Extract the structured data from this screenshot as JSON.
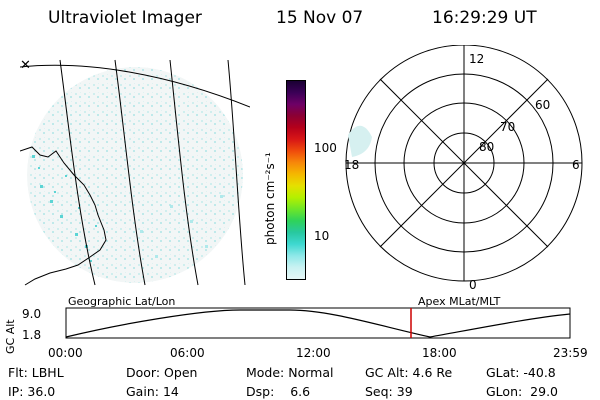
{
  "header": {
    "instrument": "Ultraviolet Imager",
    "date": "15 Nov 07",
    "time": "16:29:29 UT"
  },
  "colorbar": {
    "unit_label": "photon cm⁻²s⁻¹",
    "ticks": [
      "100",
      "10"
    ],
    "colors": [
      "#1a0033",
      "#3b0057",
      "#6e0066",
      "#8c0033",
      "#b5001b",
      "#d81616",
      "#ef4b0c",
      "#f7870a",
      "#f5b800",
      "#e5e000",
      "#b4f000",
      "#6ee628",
      "#2fd35a",
      "#28c8a0",
      "#3ed8d0",
      "#8ee8e8",
      "#c9f2f2",
      "#e6f6f6"
    ]
  },
  "polar_plot": {
    "mlat_labels": [
      "80",
      "70",
      "60"
    ],
    "mlt_labels": [
      "12",
      "18",
      "6",
      "0"
    ]
  },
  "altitude_plot": {
    "left_title": "Geographic Lat/Lon",
    "right_title": "Apex MLat/MLT",
    "y_axis_label": "GC Alt",
    "y_ticks": [
      "9.0",
      "1.8"
    ],
    "x_ticks": [
      "00:00",
      "06:00",
      "12:00",
      "18:00",
      "23:59"
    ],
    "current_time_marker_color": "#cc0000"
  },
  "status": {
    "flt_label": "Flt:",
    "flt_value": "LBHL",
    "ip_label": "IP:",
    "ip_value": "36.0",
    "door_label": "Door:",
    "door_value": "Open",
    "gain_label": "Gain:",
    "gain_value": "14",
    "mode_label": "Mode:",
    "mode_value": "Normal",
    "dsp_label": "Dsp:",
    "dsp_value": "6.6",
    "gcalt_label": "GC Alt:",
    "gcalt_value": "4.6 Re",
    "seq_label": "Seq:",
    "seq_value": "39",
    "glat_label": "GLat:",
    "glat_value": "-40.8",
    "glon_label": "GLon:",
    "glon_value": "29.0"
  }
}
